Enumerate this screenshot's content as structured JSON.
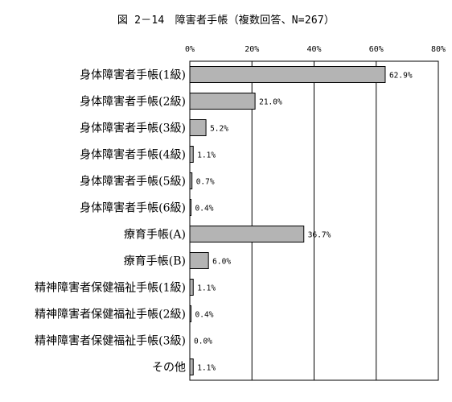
{
  "chart_data": {
    "type": "bar",
    "orientation": "horizontal",
    "title": "図 2－14　障害者手帳（複数回答、N=267）",
    "categories": [
      "身体障害者手帳(1級)",
      "身体障害者手帳(2級)",
      "身体障害者手帳(3級)",
      "身体障害者手帳(4級)",
      "身体障害者手帳(5級)",
      "身体障害者手帳(6級)",
      "療育手帳(A)",
      "療育手帳(B)",
      "精神障害者保健福祉手帳(1級)",
      "精神障害者保健福祉手帳(2級)",
      "精神障害者保健福祉手帳(3級)",
      "その他"
    ],
    "values": [
      62.9,
      21.0,
      5.2,
      1.1,
      0.7,
      0.4,
      36.7,
      6.0,
      1.1,
      0.4,
      0.0,
      1.1
    ],
    "value_labels": [
      "62.9%",
      "21.0%",
      "5.2%",
      "1.1%",
      "0.7%",
      "0.4%",
      "36.7%",
      "6.0%",
      "1.1%",
      "0.4%",
      "0.0%",
      "1.1%"
    ],
    "xlim": [
      0,
      80
    ],
    "x_ticks": [
      0,
      20,
      40,
      60,
      80
    ],
    "x_tick_labels": [
      "0%",
      "20%",
      "40%",
      "60%",
      "80%"
    ],
    "x_axis_position": "top",
    "grid": true,
    "legend": "none",
    "colors": {
      "bar_fill": "#b4b4b4",
      "bar_stroke": "#000000",
      "grid": "#000000"
    }
  }
}
